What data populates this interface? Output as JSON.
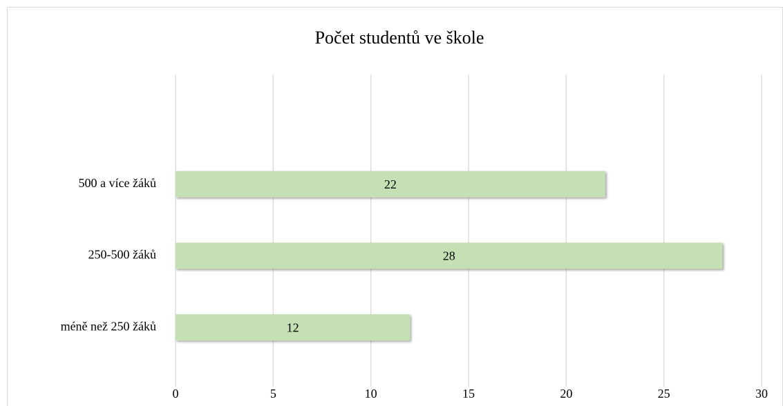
{
  "chart_data": {
    "type": "bar",
    "orientation": "horizontal",
    "title": "Počet studentů ve škole",
    "categories": [
      "méně než 250 žáků",
      "250-500 žáků",
      "500 a více žáků",
      null
    ],
    "values": [
      12,
      28,
      22,
      null
    ],
    "color": "#c5e0b4",
    "xlim": [
      0,
      30
    ],
    "xticks": [
      0,
      5,
      10,
      15,
      20,
      25,
      30
    ],
    "grid": true
  }
}
